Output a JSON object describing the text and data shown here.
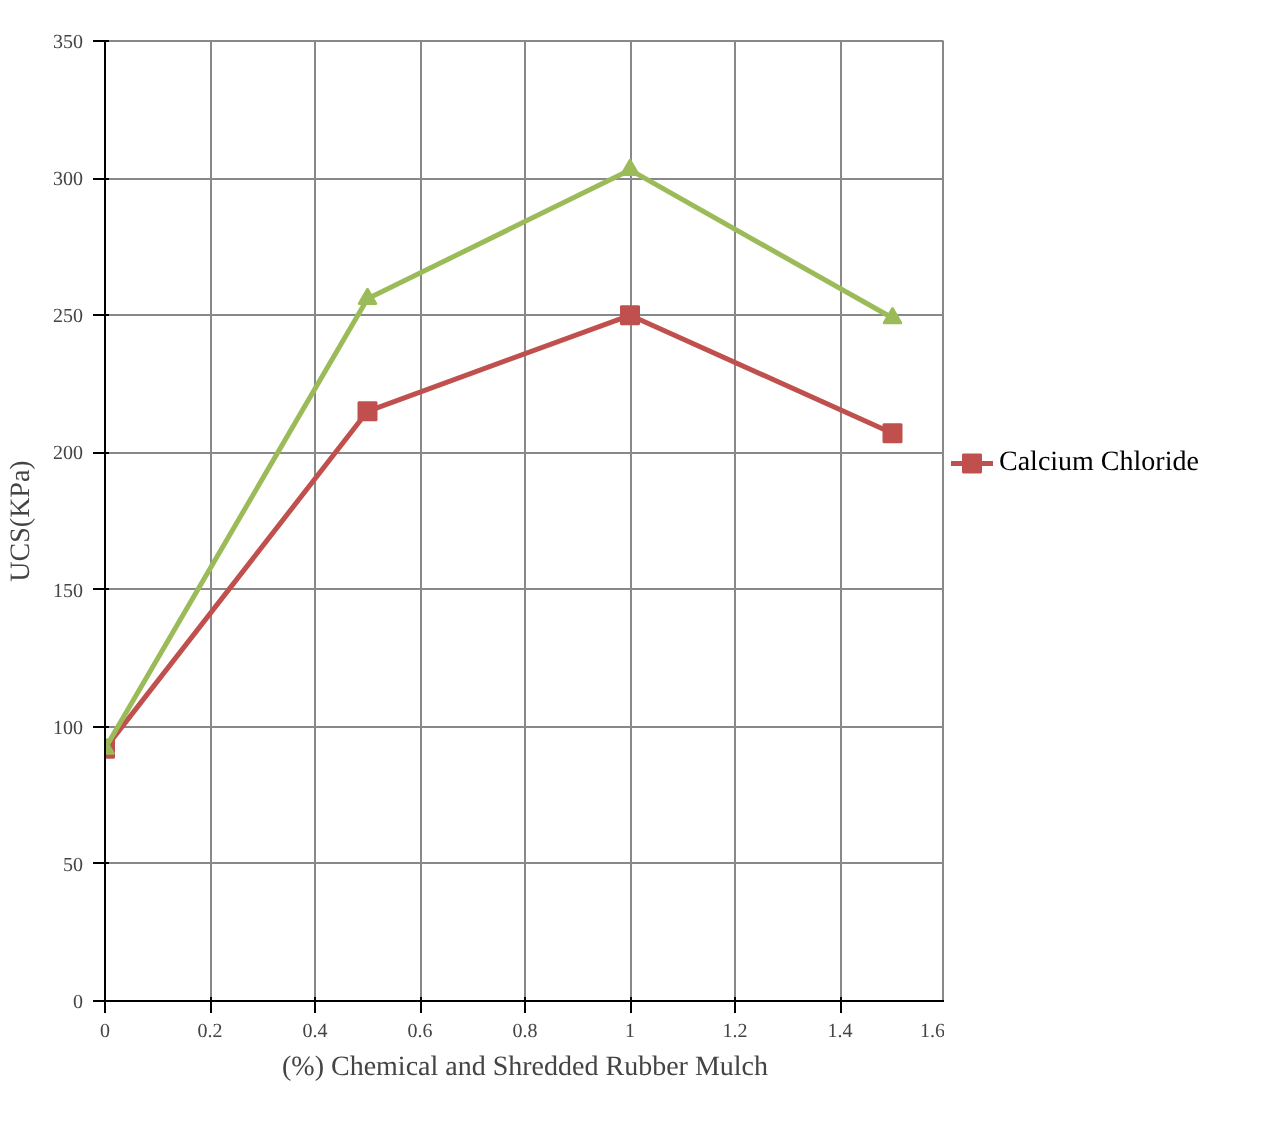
{
  "chart_data": {
    "type": "line",
    "xlabel": "(%) Chemical and Shredded Rubber Mulch",
    "ylabel": "UCS(KPa)",
    "x": [
      0,
      0.5,
      1,
      1.5
    ],
    "series": [
      {
        "name": "Calcium Chloride",
        "color": "#c0504d",
        "values": [
          92,
          215,
          250,
          207
        ],
        "marker": "square"
      },
      {
        "color": "#9bbb59",
        "values": [
          92,
          256,
          303,
          249
        ],
        "marker": "triangle"
      }
    ],
    "xlim": [
      0,
      1.6
    ],
    "xticks": [
      0,
      0.2,
      0.4,
      0.6,
      0.8,
      1,
      1.2,
      1.4,
      1.6
    ],
    "ylim": [
      0,
      350
    ],
    "yticks": [
      0,
      50,
      100,
      150,
      200,
      250,
      300,
      350
    ],
    "grid": true,
    "legend": "right",
    "line_style": "solid"
  }
}
